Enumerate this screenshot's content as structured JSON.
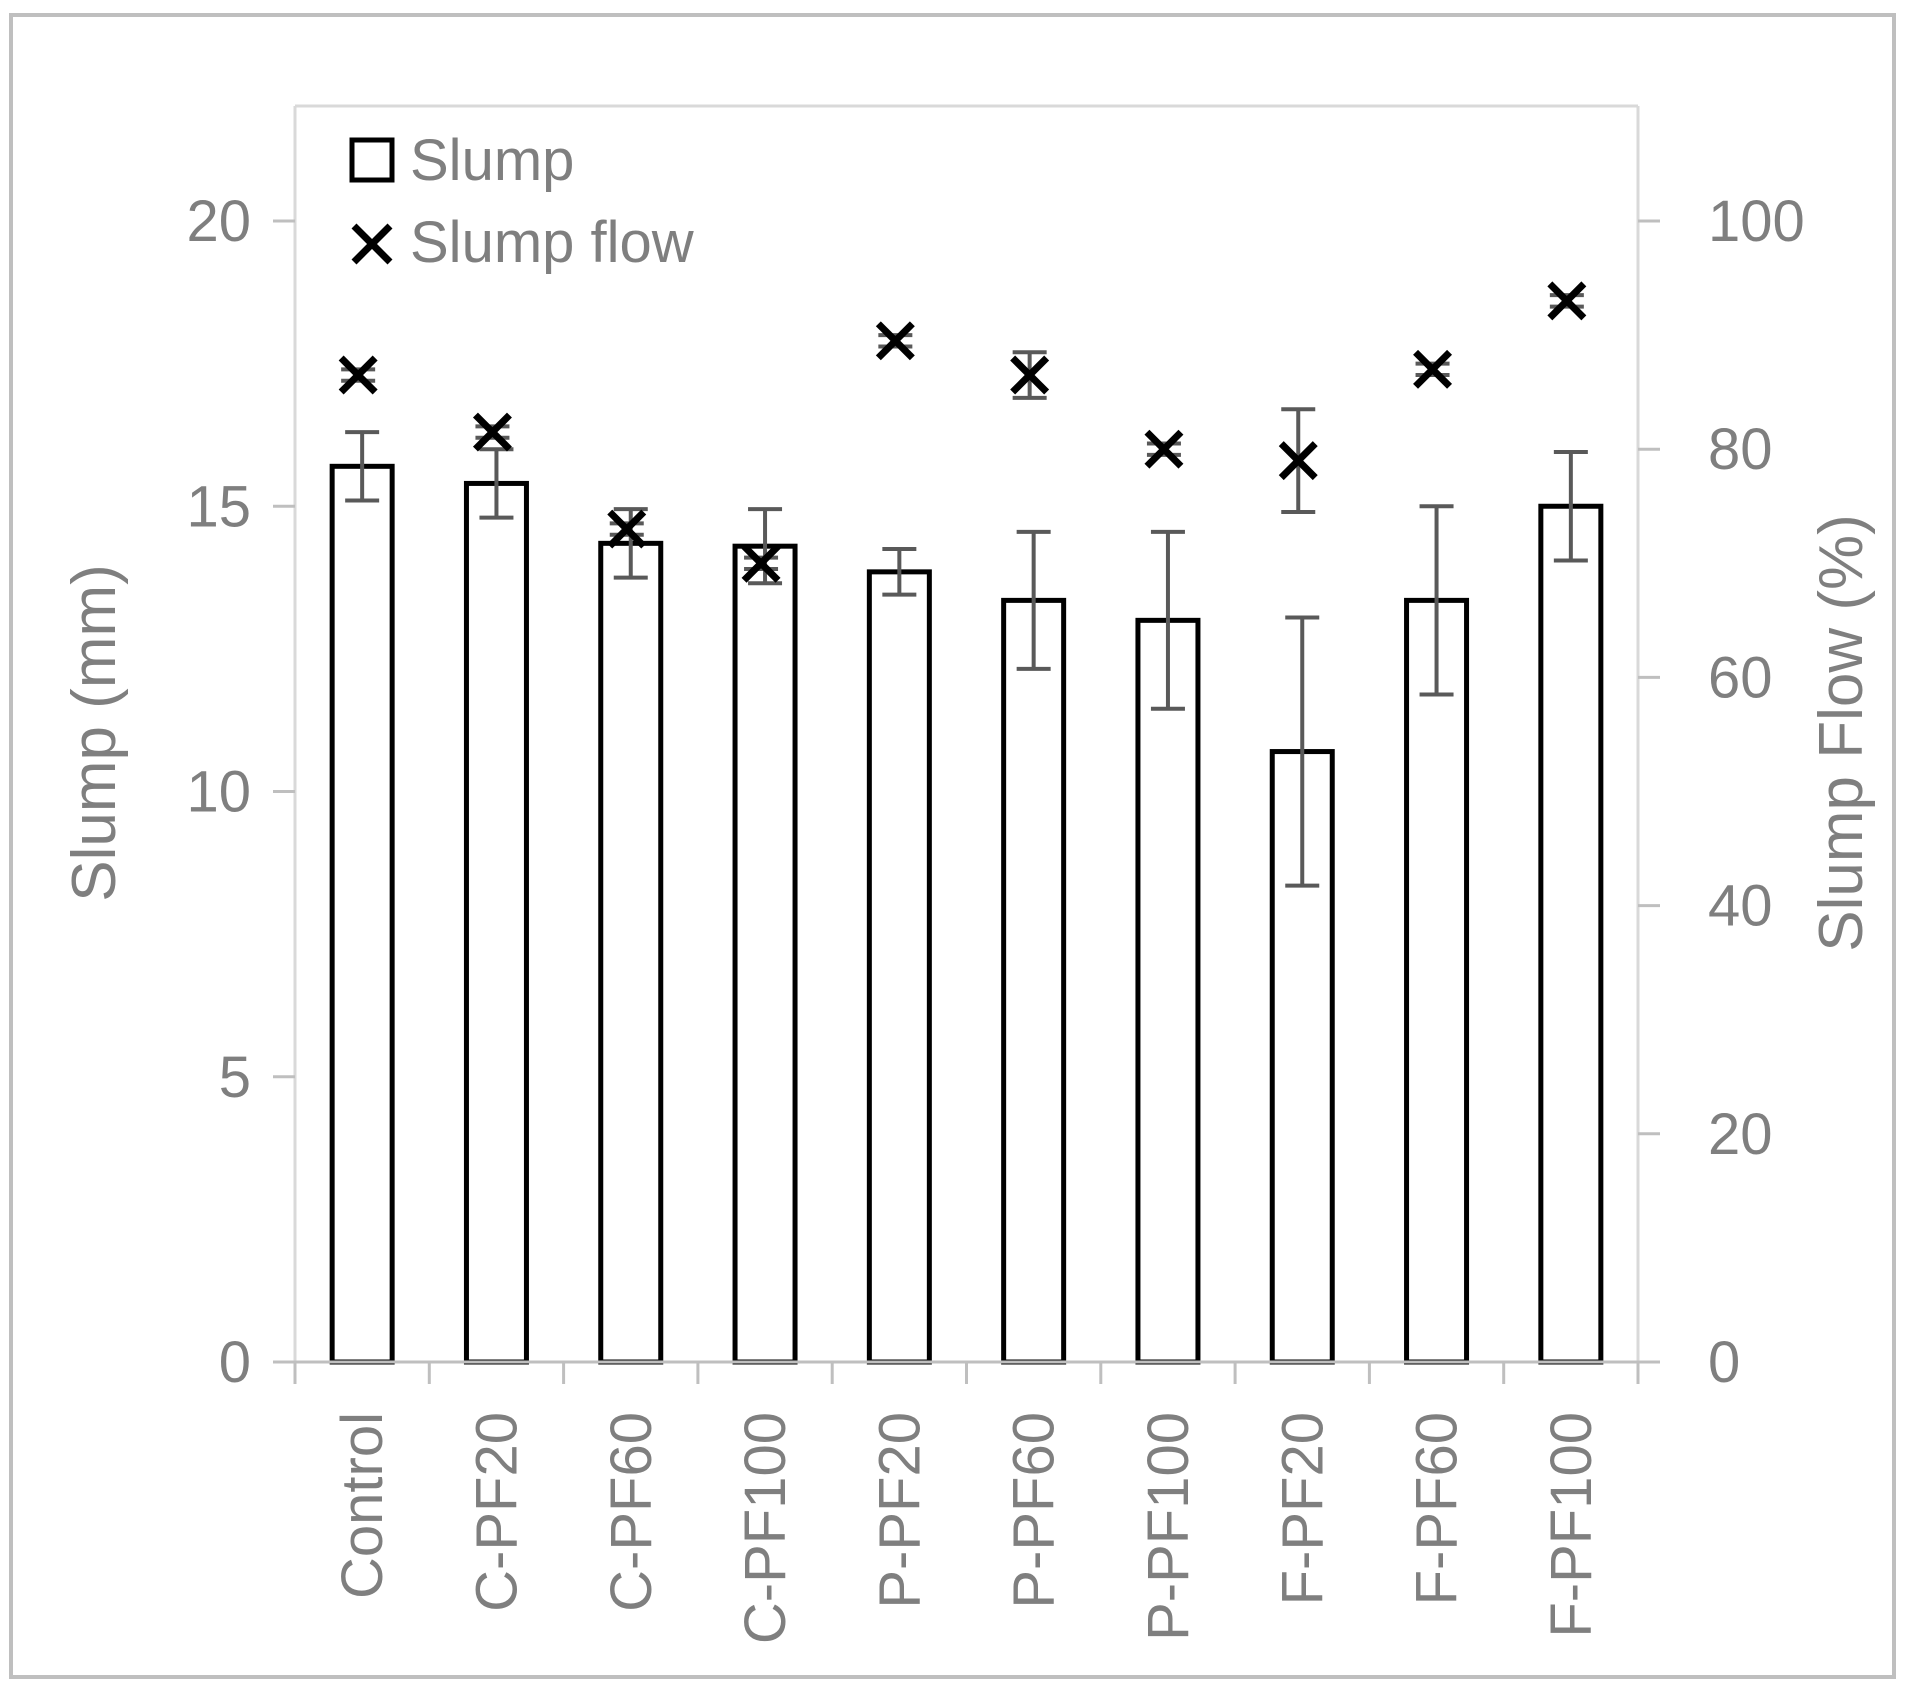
{
  "chart_data": {
    "type": "bar",
    "categories": [
      "Control",
      "C-PF20",
      "C-PF60",
      "C-PF100",
      "P-PF20",
      "P-PF60",
      "P-PF100",
      "F-PF20",
      "F-PF60",
      "F-PF100"
    ],
    "ylabel": "Slump (mm)",
    "y2label": "Slump Flow (%)",
    "ylim": [
      0,
      20
    ],
    "y2lim": [
      0,
      100
    ],
    "yticks": [
      "0",
      "5",
      "10",
      "15",
      "20"
    ],
    "y2ticks": [
      "0",
      "20",
      "40",
      "60",
      "80",
      "100"
    ],
    "legend_position": "top-left",
    "grid": false,
    "series": [
      {
        "name": "Slump",
        "kind": "bar",
        "axis": "left",
        "marker": "hollow-square",
        "values": [
          15.7,
          15.4,
          14.35,
          14.3,
          13.85,
          13.35,
          13.0,
          10.7,
          13.35,
          15.0
        ],
        "error": [
          0.6,
          0.6,
          0.6,
          0.65,
          0.4,
          1.2,
          1.55,
          2.35,
          1.65,
          0.95
        ]
      },
      {
        "name": "Slump flow",
        "kind": "scatter",
        "axis": "right",
        "marker": "x",
        "values": [
          86.5,
          81.5,
          73.0,
          70.0,
          89.5,
          86.5,
          80.0,
          79.0,
          87.0,
          93.0
        ],
        "error": [
          0.5,
          0.5,
          0.5,
          0.5,
          0.5,
          2.0,
          0.5,
          4.5,
          0.5,
          0.5
        ]
      }
    ]
  },
  "colors": {
    "bar_fill": "#ffffff",
    "bar_stroke": "#000000",
    "error_bar": "#595959",
    "axis_line": "#bfbfbf",
    "text": "#7f7f7f",
    "marker": "#000000"
  }
}
